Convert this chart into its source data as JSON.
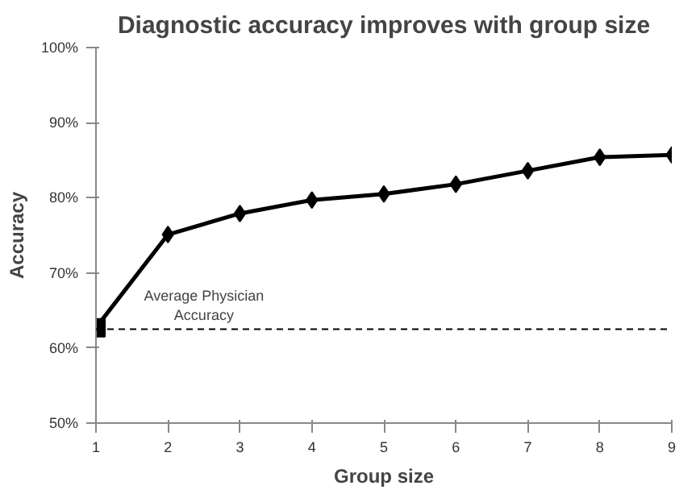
{
  "chart_data": {
    "type": "line",
    "title": "Diagnostic accuracy improves with group size",
    "xlabel": "Group size",
    "ylabel": "Accuracy",
    "x": [
      1,
      2,
      3,
      4,
      5,
      6,
      7,
      8,
      9
    ],
    "series": [
      {
        "color": "#000000",
        "values": [
          62.7,
          75.1,
          77.9,
          79.7,
          80.5,
          81.8,
          83.6,
          85.4,
          85.7
        ],
        "marker": "diamond"
      },
      {
        "type": "scatter",
        "color": "#000000",
        "x": [
          1
        ],
        "values": [
          62.7
        ],
        "marker": "square"
      }
    ],
    "xlim": [
      1,
      9
    ],
    "xticks": [
      1,
      2,
      3,
      4,
      5,
      6,
      7,
      8,
      9
    ],
    "ylim": [
      50,
      100
    ],
    "yticks": [
      {
        "value": 50,
        "label": "50%"
      },
      {
        "value": 60,
        "label": "60%"
      },
      {
        "value": 70,
        "label": "70%"
      },
      {
        "value": 80,
        "label": "80%"
      },
      {
        "value": 90,
        "label": "90%"
      },
      {
        "value": 100,
        "label": "100%"
      }
    ],
    "ref_lines": [
      {
        "axis": "y",
        "value": 62.5,
        "label": "Average Physician\nAccuracy",
        "color": "#000000",
        "line_style": "dashed"
      }
    ],
    "grid": false,
    "line_style": "solid"
  }
}
